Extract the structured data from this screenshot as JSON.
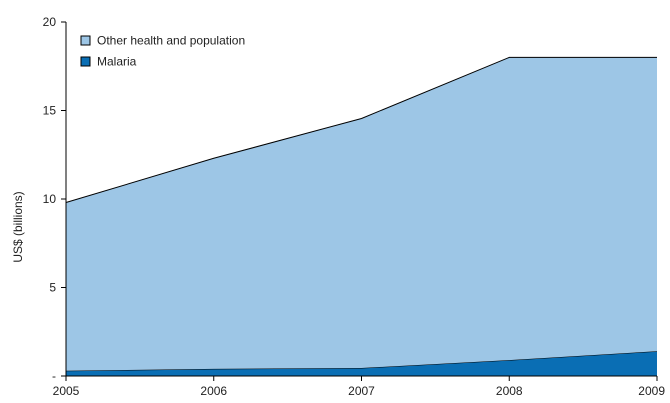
{
  "chart_data": {
    "type": "area",
    "stacked": true,
    "title": "",
    "xlabel": "",
    "ylabel": "US$ (billions)",
    "x": [
      "2005",
      "2006",
      "2007",
      "2008",
      "2009"
    ],
    "ylim": [
      0,
      20
    ],
    "yticks": [
      "-",
      "5",
      "10",
      "15",
      "20"
    ],
    "series": [
      {
        "name": "Malaria",
        "values": [
          0.3,
          0.4,
          0.45,
          0.9,
          1.4
        ],
        "color": "#0a6eb4"
      },
      {
        "name": "Other health and population",
        "values": [
          9.5,
          11.9,
          14.1,
          17.1,
          16.6
        ],
        "color": "#9dc6e6"
      }
    ],
    "legend_position": "top-left",
    "grid": false
  }
}
